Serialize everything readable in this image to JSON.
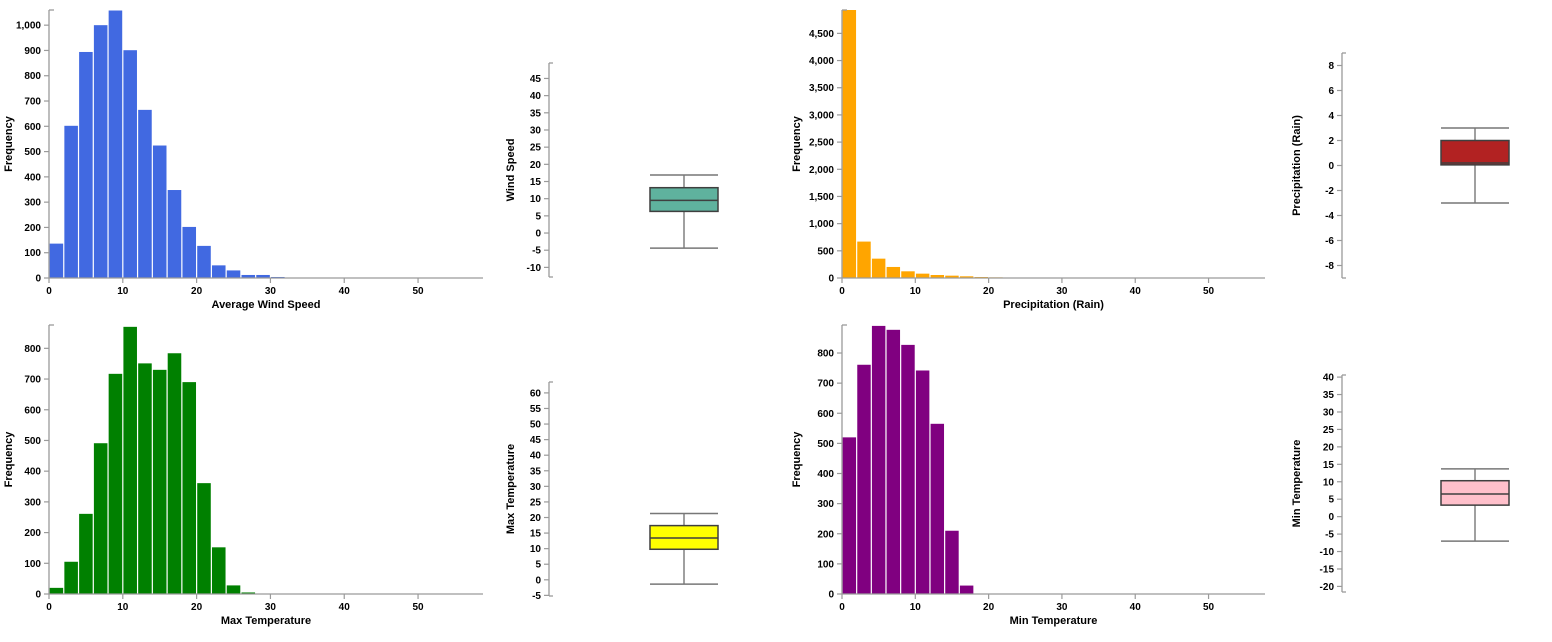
{
  "page": {
    "background": "#ffffff",
    "axis_color": "#9a9a9a",
    "label_color": "#000000"
  },
  "chart_data": [
    {
      "id": "wind-speed-histogram",
      "type": "bar",
      "variant": "histogram",
      "xlabel": "Average Wind Speed",
      "ylabel": "Frequency",
      "bar_color": "#4169E1",
      "bin_start": 0,
      "bin_width": 2,
      "values": [
        136,
        602,
        894,
        1000,
        1058,
        901,
        665,
        524,
        348,
        202,
        127,
        50,
        30,
        12,
        12,
        4
      ],
      "xlim": [
        0,
        58.8
      ],
      "ylim": [
        0,
        1060
      ],
      "x_ticks": [
        0,
        10,
        20,
        30,
        40,
        50
      ],
      "y_ticks": [
        0,
        100,
        200,
        300,
        400,
        500,
        600,
        700,
        800,
        900,
        1000
      ],
      "grid": "off",
      "legend": "none"
    },
    {
      "id": "wind-speed-boxplot",
      "type": "boxplot",
      "ylabel": "Wind Speed",
      "box_color": "#5FB29E",
      "stats": {
        "whisker_low": -4.4,
        "q1": 6.3,
        "median": 9.5,
        "q3": 13.2,
        "whisker_high": 16.9
      },
      "ylim": [
        -12.8,
        49.5
      ],
      "y_ticks": [
        -10,
        -5,
        0,
        5,
        10,
        15,
        20,
        25,
        30,
        35,
        40,
        45
      ],
      "grid": "off",
      "legend": "none"
    },
    {
      "id": "precipitation-histogram",
      "type": "bar",
      "variant": "histogram",
      "xlabel": "Precipitation (Rain)",
      "ylabel": "Frequency",
      "bar_color": "#FFA500",
      "bin_start": 0,
      "bin_width": 2,
      "values": [
        4930,
        670,
        356,
        203,
        123,
        80,
        55,
        43,
        31,
        18,
        12,
        9,
        7,
        5,
        4,
        3,
        2,
        2
      ],
      "xlim": [
        0,
        57.7
      ],
      "ylim": [
        0,
        4930
      ],
      "x_ticks": [
        0,
        10,
        20,
        30,
        40,
        50
      ],
      "y_ticks": [
        0,
        500,
        1000,
        1500,
        2000,
        2500,
        3000,
        3500,
        4000,
        4500
      ],
      "grid": "off",
      "legend": "none"
    },
    {
      "id": "precipitation-boxplot",
      "type": "boxplot",
      "ylabel": "Precipitation (Rain)",
      "box_color": "#B22222",
      "stats": {
        "whisker_low": -3,
        "q1": 0.05,
        "median": 0.2,
        "q3": 2,
        "whisker_high": 3
      },
      "ylim": [
        -9,
        9
      ],
      "y_ticks": [
        -8,
        -6,
        -4,
        -2,
        0,
        2,
        4,
        6,
        8
      ],
      "grid": "off",
      "legend": "none"
    },
    {
      "id": "max-temperature-histogram",
      "type": "bar",
      "variant": "histogram",
      "xlabel": "Max Temperature",
      "ylabel": "Frequency",
      "bar_color": "#008000",
      "bin_start": 0,
      "bin_width": 2,
      "values": [
        20,
        105,
        261,
        491,
        717,
        870,
        751,
        730,
        784,
        690,
        361,
        152,
        28,
        5
      ],
      "xlim": [
        0,
        58.8
      ],
      "ylim": [
        0,
        876
      ],
      "x_ticks": [
        0,
        10,
        20,
        30,
        40,
        50
      ],
      "y_ticks": [
        0,
        100,
        200,
        300,
        400,
        500,
        600,
        700,
        800
      ],
      "grid": "off",
      "legend": "none"
    },
    {
      "id": "max-temperature-boxplot",
      "type": "boxplot",
      "ylabel": "Max Temperature",
      "box_color": "#FFFF00",
      "stats": {
        "whisker_low": -1.4,
        "q1": 9.8,
        "median": 13.4,
        "q3": 17.4,
        "whisker_high": 21.3
      },
      "ylim": [
        -5.2,
        63.5
      ],
      "y_ticks": [
        -5,
        0,
        5,
        10,
        15,
        20,
        25,
        30,
        35,
        40,
        45,
        50,
        55,
        60
      ],
      "grid": "off",
      "legend": "none"
    },
    {
      "id": "min-temperature-histogram",
      "type": "bar",
      "variant": "histogram",
      "xlabel": "Min Temperature",
      "ylabel": "Frequency",
      "bar_color": "#800080",
      "bin_start": 0,
      "bin_width": 2,
      "values": [
        520,
        761,
        890,
        877,
        827,
        742,
        565,
        210,
        28
      ],
      "xlim": [
        0,
        57.7
      ],
      "ylim": [
        0,
        893
      ],
      "x_ticks": [
        0,
        10,
        20,
        30,
        40,
        50
      ],
      "y_ticks": [
        0,
        100,
        200,
        300,
        400,
        500,
        600,
        700,
        800
      ],
      "grid": "off",
      "legend": "none"
    },
    {
      "id": "min-temperature-boxplot",
      "type": "boxplot",
      "ylabel": "Min Temperature",
      "box_color": "#FFC0CB",
      "stats": {
        "whisker_low": -7,
        "q1": 3.3,
        "median": 6.5,
        "q3": 10.3,
        "whisker_high": 13.7
      },
      "ylim": [
        -21.6,
        40.6
      ],
      "y_ticks": [
        -20,
        -15,
        -10,
        -5,
        0,
        5,
        10,
        15,
        20,
        25,
        30,
        35,
        40
      ],
      "grid": "off",
      "legend": "none"
    }
  ]
}
